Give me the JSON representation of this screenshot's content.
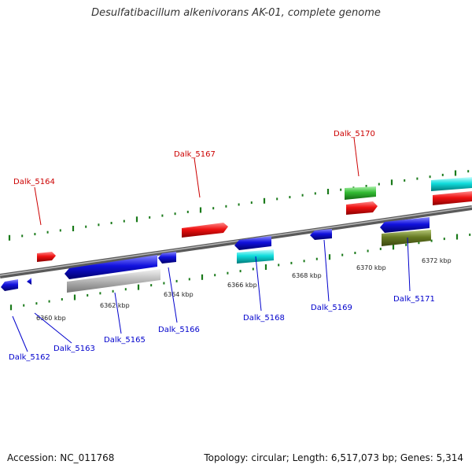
{
  "title": "Desulfatibacillum alkenivorans AK-01, complete genome",
  "accession": "Accession: NC_011768",
  "summary": "Topology: circular; Length: 6,517,073 bp; Genes: 5,314",
  "colors": {
    "label_forward": "#cc0000",
    "label_reverse": "#0000cc",
    "backbone": "#808080",
    "tick": "#1a7a1a",
    "gene_red": "#ee1111",
    "gene_blue": "#1111dd",
    "gene_green": "#33bb33",
    "gene_cyan": "#11dddd",
    "gene_olive": "#667a22",
    "gene_gray": "#bbbbbb"
  },
  "scale_labels": [
    "6360 kbp",
    "6362 kbp",
    "6364 kbp",
    "6366 kbp",
    "6368 kbp",
    "6370 kbp",
    "6372 kbp"
  ],
  "gene_labels_forward": [
    "Dalk_5164",
    "Dalk_5167",
    "Dalk_5170"
  ],
  "gene_labels_reverse": [
    "Dalk_5162",
    "Dalk_5163",
    "Dalk_5165",
    "Dalk_5166",
    "Dalk_5168",
    "Dalk_5169",
    "Dalk_5171"
  ]
}
